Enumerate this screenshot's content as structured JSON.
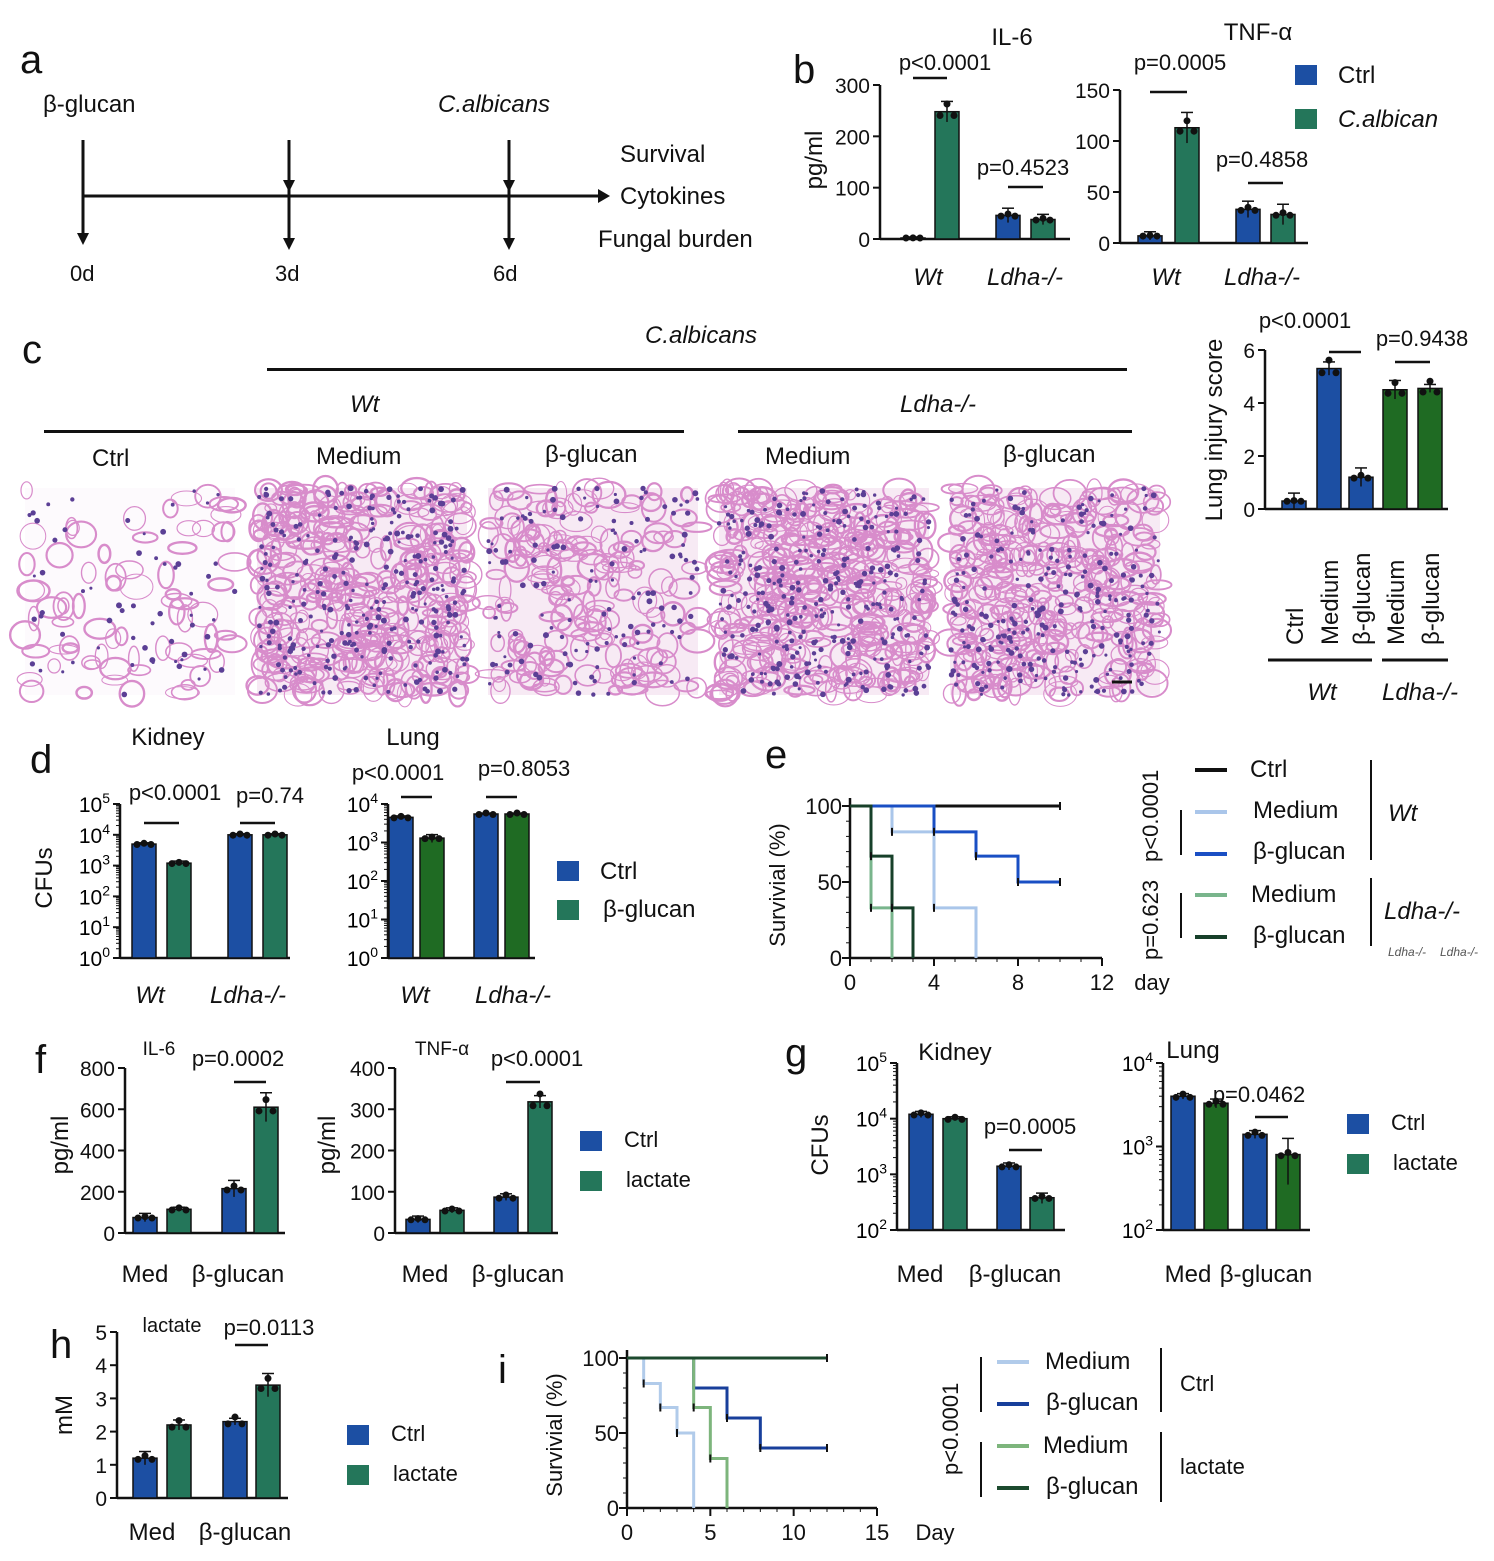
{
  "panel_letters": [
    "a",
    "b",
    "c",
    "d",
    "e",
    "f",
    "g",
    "h",
    "i"
  ],
  "panel_a": {
    "labels": {
      "start": "β-glucan",
      "challenge": "C.albicans",
      "survival": "Survival",
      "cytokines": "Cytokines",
      "fungal": "Fungal burden"
    },
    "days": [
      "0d",
      "3d",
      "6d"
    ]
  },
  "panel_c": {
    "header": "C.albicans",
    "groups": [
      "Wt",
      "Ldha-/-"
    ],
    "image_labels": [
      "Ctrl",
      "Medium",
      "β-glucan",
      "Medium",
      "β-glucan"
    ]
  },
  "colors": {
    "blue": "#1c4fa3",
    "teal": "#24765a",
    "green": "#1f6b23"
  },
  "legends": {
    "b": [
      "Ctrl",
      "C.albican"
    ],
    "d": [
      "Ctrl",
      "β-glucan"
    ],
    "f": [
      "Ctrl",
      "lactate"
    ],
    "g": [
      "Ctrl",
      "lactate"
    ],
    "h": [
      "Ctrl",
      "lactate"
    ],
    "e": {
      "items": [
        "Ctrl",
        "Medium",
        "β-glucan",
        "Medium",
        "β-glucan"
      ],
      "groups": [
        "Wt",
        "Ldha-/-"
      ],
      "pvalues": [
        "p<0.0001",
        "p=0.623"
      ]
    },
    "i": {
      "items": [
        "Medium",
        "β-glucan",
        "Medium",
        "β-glucan"
      ],
      "groups": [
        "Ctrl",
        "lactate"
      ],
      "pvalues": [
        "p<0.0001"
      ]
    }
  },
  "chart_data": [
    {
      "id": "b-il6",
      "type": "bar",
      "title": "IL-6",
      "ylabel": "pg/ml",
      "ylim": [
        0,
        300
      ],
      "ticks": [
        0,
        100,
        200,
        300
      ],
      "categories": [
        "Wt",
        "Ldha-/-"
      ],
      "series": [
        {
          "name": "Ctrl",
          "values": [
            2,
            46
          ],
          "err": [
            2,
            14
          ]
        },
        {
          "name": "C.albican",
          "values": [
            248,
            38
          ],
          "err": [
            20,
            10
          ]
        }
      ],
      "annotations": [
        {
          "text": "p<0.0001",
          "bars": [
            0,
            1
          ]
        },
        {
          "text": "p=0.4523",
          "bars": [
            2,
            3
          ]
        }
      ]
    },
    {
      "id": "b-tnf",
      "type": "bar",
      "title": "TNF-α",
      "ylabel": "",
      "ylim": [
        0,
        150
      ],
      "ticks": [
        0,
        50,
        100,
        150
      ],
      "categories": [
        "Wt",
        "Ldha-/-"
      ],
      "series": [
        {
          "name": "Ctrl",
          "values": [
            7,
            33
          ],
          "err": [
            4,
            8
          ]
        },
        {
          "name": "C.albican",
          "values": [
            113,
            28
          ],
          "err": [
            15,
            10
          ]
        }
      ],
      "annotations": [
        {
          "text": "p=0.0005",
          "bars": [
            0,
            1
          ]
        },
        {
          "text": "p=0.4858",
          "bars": [
            2,
            3
          ]
        }
      ]
    },
    {
      "id": "c-lung",
      "type": "bar",
      "title": "",
      "ylabel": "Lung injury score",
      "ylim": [
        0,
        6
      ],
      "ticks": [
        0,
        2,
        4,
        6
      ],
      "categories": [
        "Ctrl",
        "Medium",
        "β-glucan",
        "Medium",
        "β-glucan"
      ],
      "groups": [
        {
          "label": "Wt",
          "span": [
            0,
            2
          ]
        },
        {
          "label": "Ldha-/-",
          "span": [
            3,
            4
          ]
        }
      ],
      "series": [
        {
          "values": [
            0.3,
            5.3,
            1.2,
            4.5,
            4.55
          ],
          "err": [
            0.3,
            0.25,
            0.35,
            0.35,
            0.15
          ]
        }
      ],
      "annotations": [
        {
          "text": "p<0.0001",
          "bars": [
            1,
            2
          ]
        },
        {
          "text": "p=0.9438",
          "bars": [
            3,
            4
          ]
        }
      ]
    },
    {
      "id": "d-kidney",
      "type": "bar",
      "scale": "log",
      "title": "Kidney",
      "ylabel": "CFUs",
      "ylim": [
        1,
        100000
      ],
      "ticks": [
        0,
        1,
        2,
        3,
        4,
        5
      ],
      "categories": [
        "Wt",
        "Ldha-/-"
      ],
      "series": [
        {
          "name": "Ctrl",
          "values": [
            5000,
            10000
          ],
          "err": [
            500,
            800
          ]
        },
        {
          "name": "β-glucan",
          "values": [
            1200,
            10000
          ],
          "err": [
            200,
            800
          ]
        }
      ],
      "annotations": [
        {
          "text": "p<0.0001",
          "bars": [
            0,
            1
          ]
        },
        {
          "text": "p=0.74",
          "bars": [
            2,
            3
          ]
        }
      ]
    },
    {
      "id": "d-lung",
      "type": "bar",
      "scale": "log",
      "title": "Lung",
      "ylabel": "",
      "ylim": [
        1,
        10000
      ],
      "ticks": [
        0,
        1,
        2,
        3,
        4
      ],
      "categories": [
        "Wt",
        "Ldha-/-"
      ],
      "series": [
        {
          "name": "Ctrl",
          "values": [
            4500,
            5500
          ],
          "err": [
            400,
            300
          ]
        },
        {
          "name": "β-glucan",
          "values": [
            1300,
            5500
          ],
          "err": [
            300,
            300
          ]
        }
      ],
      "annotations": [
        {
          "text": "p<0.0001",
          "bars": [
            0,
            1
          ]
        },
        {
          "text": "p=0.8053",
          "bars": [
            2,
            3
          ]
        }
      ]
    },
    {
      "id": "e-survival",
      "type": "line",
      "subtype": "survival",
      "ylabel": "Survivial (%)",
      "xlabel": "day",
      "xlim": [
        0,
        12
      ],
      "ylim": [
        0,
        100
      ],
      "xticks": [
        0,
        4,
        8,
        12
      ],
      "yticks": [
        0,
        50,
        100
      ],
      "series": [
        {
          "name": "Ctrl",
          "group": "Wt",
          "color": "#111111",
          "x": [
            0,
            10
          ],
          "y": [
            100,
            100
          ]
        },
        {
          "name": "Medium",
          "group": "Wt",
          "color": "#aac6ea",
          "x": [
            0,
            2,
            4,
            6
          ],
          "y": [
            100,
            83,
            33,
            0
          ]
        },
        {
          "name": "β-glucan",
          "group": "Wt",
          "color": "#1a4fc4",
          "x": [
            0,
            4,
            6,
            8,
            10
          ],
          "y": [
            100,
            83,
            67,
            50,
            50
          ]
        },
        {
          "name": "Medium",
          "group": "Ldha-/-",
          "color": "#79b58c",
          "x": [
            0,
            1,
            2
          ],
          "y": [
            100,
            33,
            0
          ]
        },
        {
          "name": "β-glucan",
          "group": "Ldha-/-",
          "color": "#17402a",
          "x": [
            0,
            1,
            2,
            3
          ],
          "y": [
            100,
            67,
            33,
            0
          ]
        }
      ]
    },
    {
      "id": "f-il6",
      "type": "bar",
      "title": "IL-6",
      "ylabel": "pg/ml",
      "ylim": [
        0,
        800
      ],
      "ticks": [
        0,
        200,
        400,
        600,
        800
      ],
      "categories": [
        "Med",
        "β-glucan"
      ],
      "series": [
        {
          "name": "Ctrl",
          "values": [
            75,
            215
          ],
          "err": [
            20,
            40
          ]
        },
        {
          "name": "lactate",
          "values": [
            115,
            610
          ],
          "err": [
            10,
            70
          ]
        }
      ],
      "annotations": [
        {
          "text": "p=0.0002",
          "bars": [
            2,
            3
          ]
        }
      ]
    },
    {
      "id": "f-tnf",
      "type": "bar",
      "title": "TNF-α",
      "ylabel": "pg/ml",
      "ylim": [
        0,
        400
      ],
      "ticks": [
        0,
        100,
        200,
        300,
        400
      ],
      "categories": [
        "Med",
        "β-glucan"
      ],
      "series": [
        {
          "name": "Ctrl",
          "values": [
            33,
            87
          ],
          "err": [
            8,
            8
          ]
        },
        {
          "name": "lactate",
          "values": [
            55,
            318
          ],
          "err": [
            6,
            15
          ]
        }
      ],
      "annotations": [
        {
          "text": "p<0.0001",
          "bars": [
            2,
            3
          ]
        }
      ]
    },
    {
      "id": "g-kidney",
      "type": "bar",
      "scale": "log",
      "title": "Kidney",
      "ylabel": "CFUs",
      "ylim": [
        100,
        100000
      ],
      "ticks": [
        2,
        3,
        4,
        5
      ],
      "categories": [
        "Med",
        "β-glucan"
      ],
      "series": [
        {
          "name": "Ctrl",
          "values": [
            12000,
            1400
          ],
          "err": [
            1500,
            200
          ]
        },
        {
          "name": "lactate",
          "values": [
            10000,
            380
          ],
          "err": [
            800,
            80
          ]
        }
      ],
      "annotations": [
        {
          "text": "p=0.0005",
          "bars": [
            2,
            3
          ]
        }
      ]
    },
    {
      "id": "g-lung",
      "type": "bar",
      "scale": "log",
      "title": "Lung",
      "ylabel": "",
      "ylim": [
        100,
        10000
      ],
      "ticks": [
        2,
        3,
        4
      ],
      "categories": [
        "Med",
        "β-glucan"
      ],
      "series": [
        {
          "name": "Ctrl",
          "values": [
            4000,
            1400
          ],
          "err": [
            300,
            150
          ]
        },
        {
          "name": "lactate",
          "values": [
            3300,
            800
          ],
          "err": [
            400,
            450
          ]
        }
      ],
      "annotations": [
        {
          "text": "p=0.0462",
          "bars": [
            2,
            3
          ]
        }
      ]
    },
    {
      "id": "h-lactate",
      "type": "bar",
      "title": "lactate",
      "ylabel": "mM",
      "ylim": [
        0,
        5
      ],
      "ticks": [
        0,
        1,
        2,
        3,
        4,
        5
      ],
      "categories": [
        "Med",
        "β-glucan"
      ],
      "series": [
        {
          "name": "Ctrl",
          "values": [
            1.2,
            2.3
          ],
          "err": [
            0.2,
            0.1
          ]
        },
        {
          "name": "lactate",
          "values": [
            2.2,
            3.4
          ],
          "err": [
            0.15,
            0.35
          ]
        }
      ],
      "annotations": [
        {
          "text": "p=0.0113",
          "bars": [
            2,
            3
          ]
        }
      ]
    },
    {
      "id": "i-survival",
      "type": "line",
      "subtype": "survival",
      "ylabel": "Survivial (%)",
      "xlabel": "Day",
      "xlim": [
        0,
        15
      ],
      "ylim": [
        0,
        100
      ],
      "xticks": [
        0,
        5,
        10,
        15
      ],
      "yticks": [
        0,
        50,
        100
      ],
      "series": [
        {
          "name": "Medium",
          "group": "Ctrl",
          "color": "#b1cbea",
          "x": [
            0,
            1,
            2,
            3,
            4
          ],
          "y": [
            100,
            83,
            67,
            50,
            0
          ]
        },
        {
          "name": "β-glucan",
          "group": "Ctrl",
          "color": "#183f9b",
          "x": [
            0,
            4,
            6,
            8,
            12
          ],
          "y": [
            100,
            80,
            60,
            40,
            40
          ]
        },
        {
          "name": "Medium",
          "group": "lactate",
          "color": "#7db57c",
          "x": [
            0,
            4,
            5,
            6
          ],
          "y": [
            100,
            67,
            33,
            0
          ]
        },
        {
          "name": "β-glucan",
          "group": "lactate",
          "color": "#1c4a2e",
          "x": [
            0,
            12
          ],
          "y": [
            100,
            100
          ]
        }
      ]
    }
  ]
}
